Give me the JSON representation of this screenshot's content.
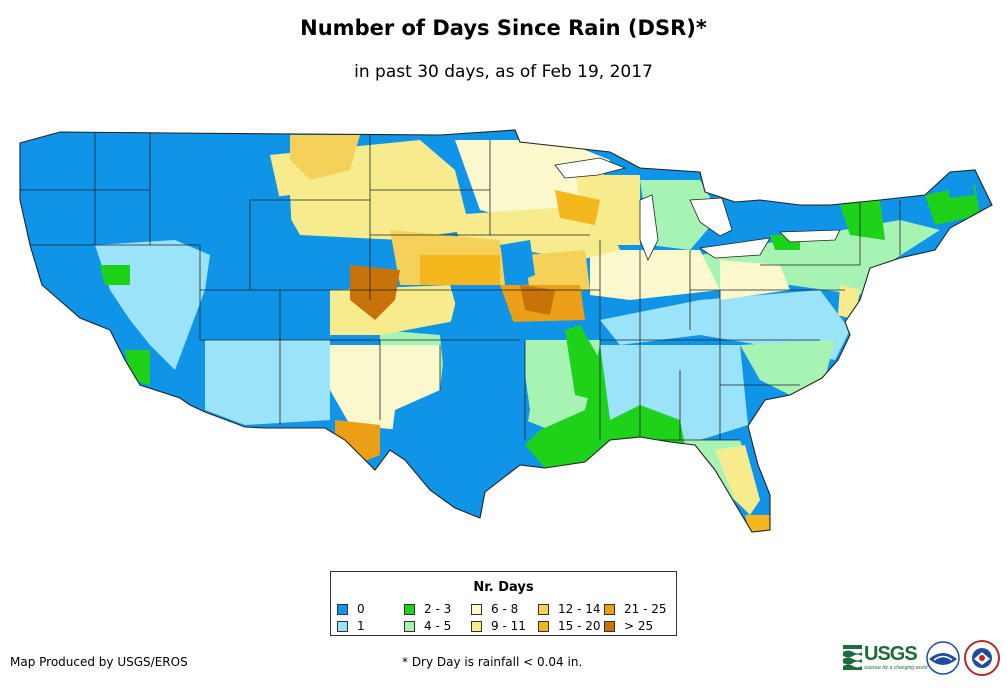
{
  "title": "Number of Days Since Rain (DSR)*",
  "subtitle": "in past 30 days, as of Feb 19, 2017",
  "legend": {
    "title": "Nr. Days",
    "items": [
      {
        "label": "0",
        "color": "#0f94e8"
      },
      {
        "label": "1",
        "color": "#9ae3f8"
      },
      {
        "label": "2 - 3",
        "color": "#1ed21a"
      },
      {
        "label": "4 - 5",
        "color": "#a6f3b4"
      },
      {
        "label": "6 - 8",
        "color": "#fbf9cc"
      },
      {
        "label": "9 - 11",
        "color": "#f7ec8d"
      },
      {
        "label": "12 - 14",
        "color": "#f6d15a"
      },
      {
        "label": "15 - 20",
        "color": "#f4b71d"
      },
      {
        "label": "21 - 25",
        "color": "#ea9f17"
      },
      {
        "label": "> 25",
        "color": "#c77309"
      }
    ]
  },
  "credit": "Map Produced by USGS/EROS",
  "footnote": "* Dry Day is rainfall < 0.04 in.",
  "logos": {
    "usgs_text": "USGS",
    "usgs_tagline": "science for a changing world",
    "noaa_icon": "noaa-logo-icon",
    "nws_icon": "nws-logo-icon"
  }
}
